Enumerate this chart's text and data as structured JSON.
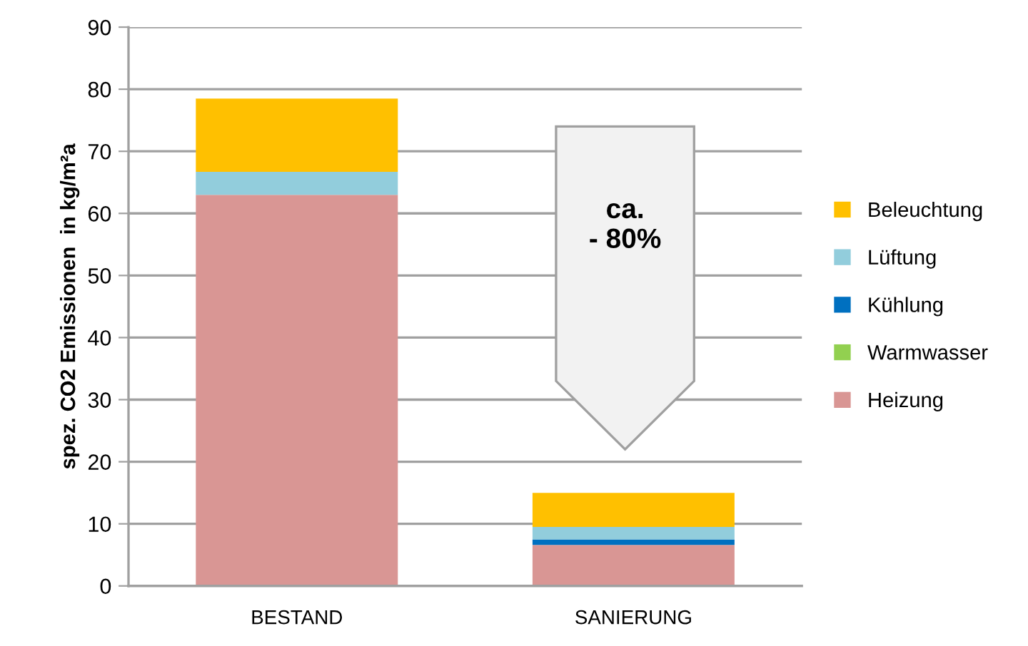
{
  "chart_data": {
    "type": "bar",
    "stacked": true,
    "ylabel": "spez. CO2 Emissionen  in kg/m²a",
    "categories": [
      "BESTAND",
      "SANIERUNG"
    ],
    "series": [
      {
        "name": "Heizung",
        "color": "#d99694",
        "values": [
          63.0,
          6.6
        ]
      },
      {
        "name": "Warmwasser",
        "color": "#92d050",
        "values": [
          0,
          0
        ]
      },
      {
        "name": "Kühlung",
        "color": "#0070c0",
        "values": [
          0,
          0.9
        ]
      },
      {
        "name": "Lüftung",
        "color": "#92cddc",
        "values": [
          3.7,
          2.0
        ]
      },
      {
        "name": "Beleuchtung",
        "color": "#ffc000",
        "values": [
          11.8,
          5.5
        ]
      }
    ],
    "ylim": [
      0,
      90
    ],
    "yticks": [
      0,
      10,
      20,
      30,
      40,
      50,
      60,
      70,
      80,
      90
    ],
    "grid": "y",
    "legend": "right",
    "annotations": [
      "ca.\n- 80%"
    ]
  }
}
